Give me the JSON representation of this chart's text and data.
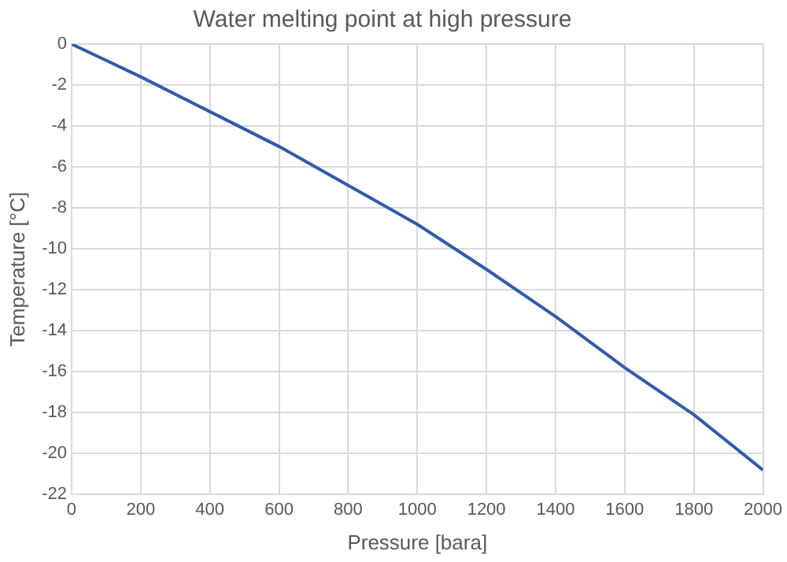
{
  "chart_data": {
    "type": "line",
    "title": "Water melting point at high pressure",
    "xlabel": "Pressure [bara]",
    "ylabel": "Temperature [°C]",
    "x": [
      0,
      100,
      200,
      400,
      600,
      800,
      1000,
      1200,
      1400,
      1600,
      1800,
      2000
    ],
    "series": [
      {
        "color": "#2f5ca8",
        "values": [
          0,
          -0.8,
          -1.6,
          -3.3,
          -5.0,
          -6.9,
          -8.8,
          -11.0,
          -13.3,
          -15.8,
          -18.1,
          -20.8
        ]
      }
    ],
    "xlim": [
      0,
      2000
    ],
    "xticks": [
      0,
      200,
      400,
      600,
      800,
      1000,
      1200,
      1400,
      1600,
      1800,
      2000
    ],
    "ylim": [
      -22,
      0
    ],
    "yticks": [
      -22,
      -20,
      -18,
      -16,
      -14,
      -12,
      -10,
      -8,
      -6,
      -4,
      -2,
      0
    ],
    "grid": true,
    "legend": false,
    "marker": "none",
    "line_style": "solid"
  }
}
